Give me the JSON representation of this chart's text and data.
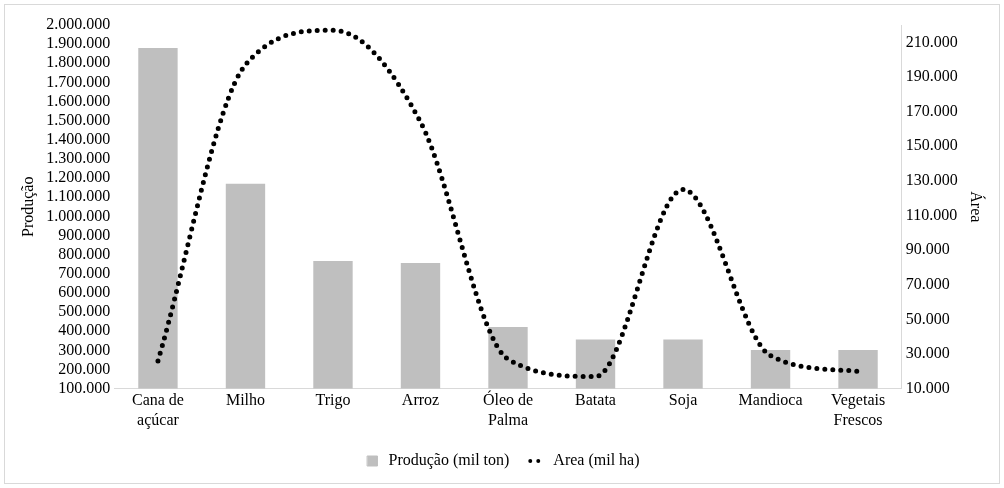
{
  "chart_data": {
    "type": "bar",
    "categories": [
      "Cana de açúcar",
      "Milho",
      "Trigo",
      "Arroz",
      "Óleo de Palma",
      "Batata",
      "Soja",
      "Mandioca",
      "Vegetais Frescos"
    ],
    "ylabel": "Produção",
    "y2label": "Área",
    "series": [
      {
        "name": "Produção (mil ton)",
        "color": "#bfbfbf",
        "values": [
          1880000,
          1170000,
          767000,
          756000,
          422000,
          357000,
          357000,
          302000,
          302000
        ]
      },
      {
        "name": "Area (mil ha)",
        "type": "line",
        "axis": "y2",
        "color": "#000000",
        "line_style": "dotted",
        "marker": "none",
        "values": [
          26000,
          197000,
          217000,
          164000,
          27000,
          17000,
          125000,
          29000,
          20000
        ]
      }
    ],
    "ylim": [
      100000,
      2000000
    ],
    "yticks": [
      {
        "value": 100000,
        "label": "100.000"
      },
      {
        "value": 200000,
        "label": "200.000"
      },
      {
        "value": 300000,
        "label": "300.000"
      },
      {
        "value": 400000,
        "label": "400.000"
      },
      {
        "value": 500000,
        "label": "500.000"
      },
      {
        "value": 600000,
        "label": "600.000"
      },
      {
        "value": 700000,
        "label": "700.000"
      },
      {
        "value": 800000,
        "label": "800.000"
      },
      {
        "value": 900000,
        "label": "900.000"
      },
      {
        "value": 1000000,
        "label": "1.000.000"
      },
      {
        "value": 1100000,
        "label": "1.100.000"
      },
      {
        "value": 1200000,
        "label": "1.200.000"
      },
      {
        "value": 1300000,
        "label": "1.300.000"
      },
      {
        "value": 1400000,
        "label": "1.400.000"
      },
      {
        "value": 1500000,
        "label": "1.500.000"
      },
      {
        "value": 1600000,
        "label": "1.600.000"
      },
      {
        "value": 1700000,
        "label": "1.700.000"
      },
      {
        "value": 1800000,
        "label": "1.800.000"
      },
      {
        "value": 1900000,
        "label": "1.900.000"
      },
      {
        "value": 2000000,
        "label": "2.000.000"
      }
    ],
    "y2lim": [
      10000,
      220000
    ],
    "y2ticks": [
      {
        "value": 10000,
        "label": "10.000"
      },
      {
        "value": 30000,
        "label": "30.000"
      },
      {
        "value": 50000,
        "label": "50.000"
      },
      {
        "value": 70000,
        "label": "70.000"
      },
      {
        "value": 90000,
        "label": "90.000"
      },
      {
        "value": 110000,
        "label": "110.000"
      },
      {
        "value": 130000,
        "label": "130.000"
      },
      {
        "value": 150000,
        "label": "150.000"
      },
      {
        "value": 170000,
        "label": "170.000"
      },
      {
        "value": 190000,
        "label": "190.000"
      },
      {
        "value": 210000,
        "label": "210.000"
      }
    ],
    "grid": false,
    "legend": "bottom"
  }
}
